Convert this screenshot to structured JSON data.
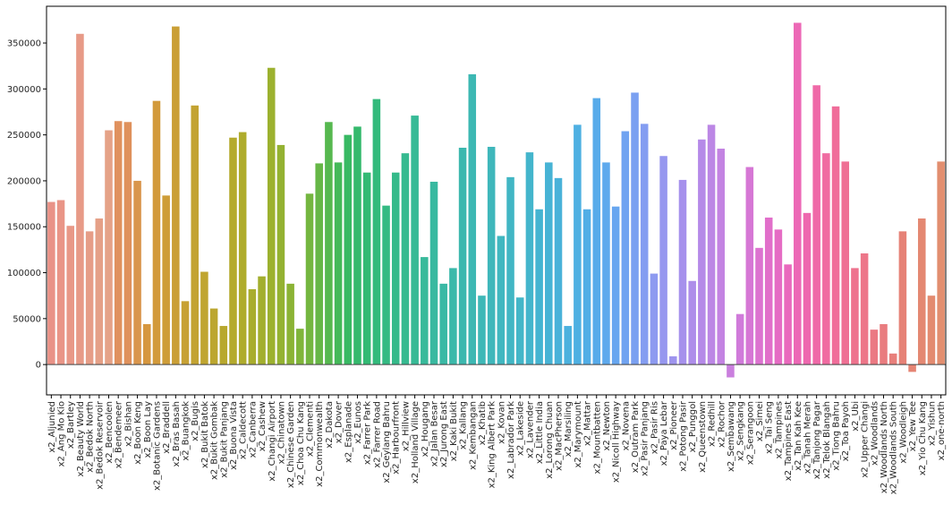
{
  "chart_data": {
    "type": "bar",
    "title": "",
    "xlabel": "",
    "ylabel": "",
    "ylim": [
      -33000,
      390000
    ],
    "yticks": [
      0,
      50000,
      100000,
      150000,
      200000,
      250000,
      300000,
      350000
    ],
    "ytick_labels": [
      "0",
      "50000",
      "100000",
      "150000",
      "200000",
      "250000",
      "300000",
      "350000"
    ],
    "categories": [
      "x2_Aljunied",
      "x2_Ang Mo Kio",
      "x2_Bartley",
      "x2_Beauty World",
      "x2_Bedok North",
      "x2_Bedok Reservoir",
      "x2_Bencoolen",
      "x2_Bendemeer",
      "x2_Bishan",
      "x2_Boon Keng",
      "x2_Boon Lay",
      "x2_Botanic Gardens",
      "x2_Braddell",
      "x2_Bras Basah",
      "x2_Buangkok",
      "x2_Bugis",
      "x2_Bukit Batok",
      "x2_Bukit Gombak",
      "x2_Bukit Panjang",
      "x2_Buona Vista",
      "x2_Caldecott",
      "x2_Canberra",
      "x2_Cashew",
      "x2_Changi Airport",
      "x2_Chinatown",
      "x2_Chinese Garden",
      "x2_Choa Chu Kang",
      "x2_Clementi",
      "x2_Commonwealth",
      "x2_Dakota",
      "x2_Dover",
      "x2_Esplanade",
      "x2_Eunos",
      "x2_Farrer Park",
      "x2_Farrer Road",
      "x2_Geylang Bahru",
      "x2_Harbourfront",
      "x2_Hillview",
      "x2_Holland Village",
      "x2_Hougang",
      "x2_Jalan Besar",
      "x2_Jurong East",
      "x2_Kaki Bukit",
      "x2_Kallang",
      "x2_Kembangan",
      "x2_Khatib",
      "x2_King Albert Park",
      "x2_Kovan",
      "x2_Labrador Park",
      "x2_Lakeside",
      "x2_Lavender",
      "x2_Little India",
      "x2_Lorong Chuan",
      "x2_MacPherson",
      "x2_Marsiling",
      "x2_Marymount",
      "x2_Mattar",
      "x2_Mountbatten",
      "x2_Newton",
      "x2_Nicoll Highway",
      "x2_Novena",
      "x2_Outram Park",
      "x2_Pasir Panjang",
      "x2_Pasir Ris",
      "x2_Paya Lebar",
      "x2_Pioneer",
      "x2_Potong Pasir",
      "x2_Punggol",
      "x2_Queenstown",
      "x2_Redhill",
      "x2_Rochor",
      "x2_Sembawang",
      "x2_Sengkang",
      "x2_Serangoon",
      "x2_Simei",
      "x2_Tai Seng",
      "x2_Tampines",
      "x2_Tampines East",
      "x2_Tan Kah Kee",
      "x2_Tanah Merah",
      "x2_Tanjong Pagar",
      "x2_Telok Blangah",
      "x2_Tiong Bahru",
      "x2_Toa Payoh",
      "x2_Ubi",
      "x2_Upper Changi",
      "x2_Woodlands",
      "x2_Woodlands North",
      "x2_Woodlands South",
      "x2_Woodleigh",
      "x2_Yew Tee",
      "x2_Yio Chu Kang",
      "x2_Yishun",
      "x2_one-north"
    ],
    "values": [
      177000,
      179000,
      151000,
      360000,
      145000,
      159000,
      255000,
      265000,
      264000,
      200000,
      44000,
      287000,
      184000,
      368000,
      69000,
      282000,
      101000,
      61000,
      42000,
      247000,
      253000,
      82000,
      96000,
      323000,
      239000,
      88000,
      39000,
      186000,
      219000,
      264000,
      220000,
      250000,
      259000,
      209000,
      289000,
      173000,
      209000,
      230000,
      271000,
      117000,
      199000,
      88000,
      105000,
      236000,
      316000,
      75000,
      237000,
      140000,
      204000,
      73000,
      231000,
      169000,
      220000,
      203000,
      42000,
      261000,
      169000,
      290000,
      220000,
      172000,
      254000,
      296000,
      262000,
      99000,
      227000,
      9000,
      201000,
      91000,
      245000,
      261000,
      235000,
      -14000,
      55000,
      215000,
      127000,
      160000,
      147000,
      109000,
      372000,
      165000,
      304000,
      230000,
      281000,
      221000,
      105000,
      121000,
      38000,
      44000,
      12000,
      145000,
      -8000,
      159000,
      75000,
      221000
    ],
    "colors": [
      "#e99287",
      "#e99587",
      "#e89887",
      "#e79a87",
      "#e69d87",
      "#e5a087",
      "#e5a287",
      "#e0915e",
      "#df915c",
      "#d9964d",
      "#d6973f",
      "#d29a3b",
      "#ce9d38",
      "#ca9f36",
      "#c7a134",
      "#c3a332",
      "#c0a530",
      "#bca62f",
      "#b8a82e",
      "#b4aa2d",
      "#afac2d",
      "#a9ad2d",
      "#a3af2e",
      "#9cb12f",
      "#94b232",
      "#8bb335",
      "#80b53a",
      "#74b640",
      "#66b747",
      "#56b84f",
      "#44b959",
      "#38b963",
      "#34b96c",
      "#33ba74",
      "#33ba7c",
      "#34ba83",
      "#35ba8a",
      "#36ba90",
      "#37ba96",
      "#38ba9b",
      "#39b9a0",
      "#3ab9a5",
      "#3bb9aa",
      "#3cb8ae",
      "#3db8b3",
      "#3eb8b7",
      "#3fb7bb",
      "#40b7c0",
      "#41b6c4",
      "#43b6c8",
      "#44b5cc",
      "#45b4d1",
      "#47b3d5",
      "#49b2d9",
      "#4bb1de",
      "#4eb0e2",
      "#52aee6",
      "#57abea",
      "#5ea9ed",
      "#67a6f0",
      "#70a3f1",
      "#7aa0f1",
      "#849df1",
      "#8d9af0",
      "#9697ef",
      "#9e94ee",
      "#a691ec",
      "#ae8eea",
      "#b58ae8",
      "#bc87e5",
      "#c383e2",
      "#ca7fde",
      "#d07bda",
      "#d677d5",
      "#dc73d0",
      "#e16fca",
      "#e56cc4",
      "#e969bd",
      "#ec68b6",
      "#ee68af",
      "#ef69a8",
      "#f06ba1",
      "#f06d9a",
      "#ef7094",
      "#ee738e",
      "#ed7689",
      "#eb7983",
      "#e97c7f",
      "#e87f7b",
      "#e68277",
      "#e58574",
      "#e48872",
      "#e38b70",
      "#e28e6f"
    ]
  }
}
